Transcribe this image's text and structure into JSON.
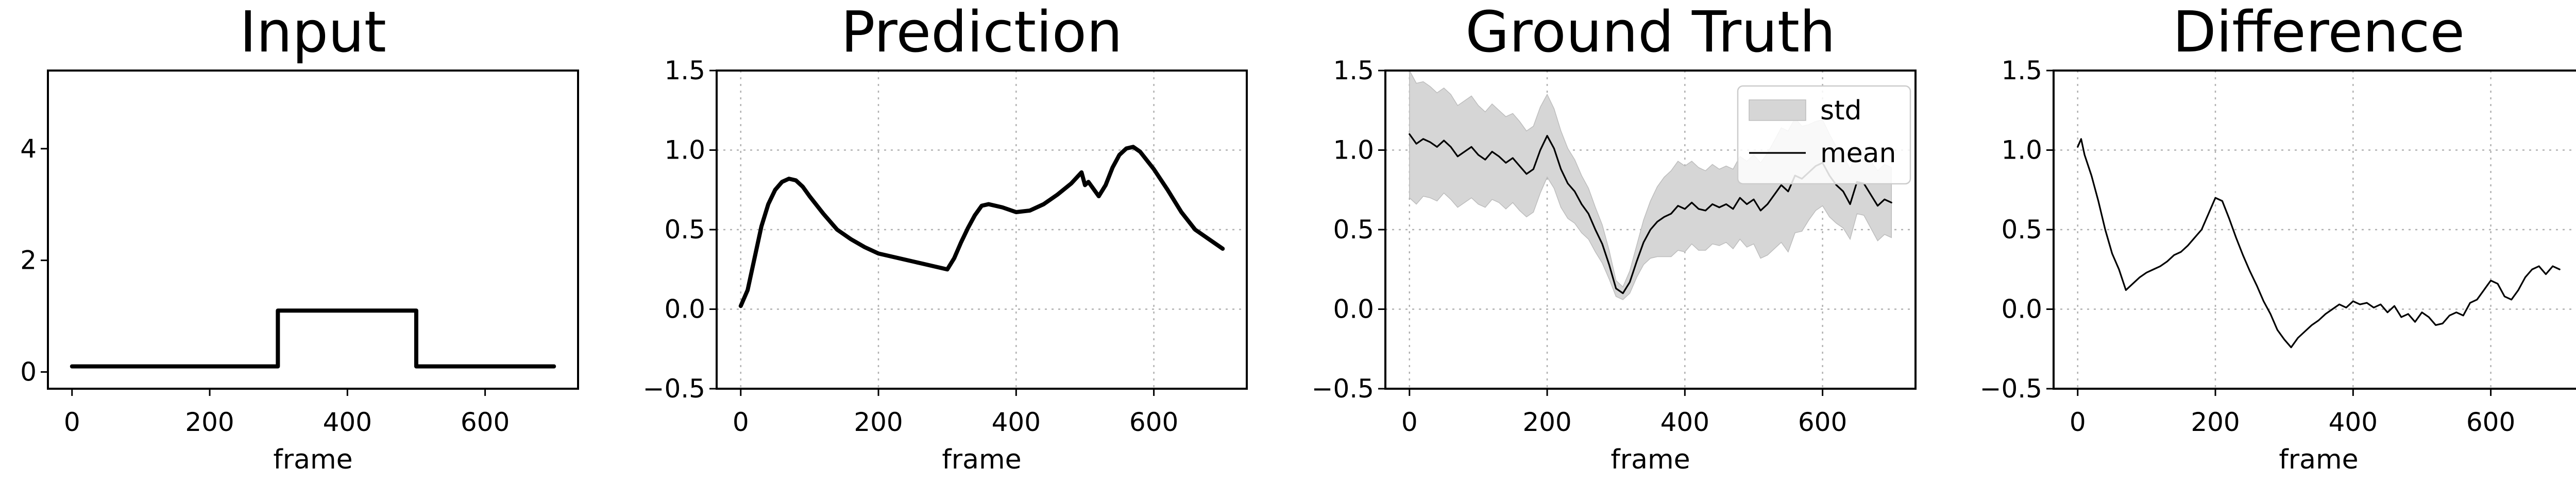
{
  "chart_data": [
    {
      "id": "input",
      "type": "line",
      "title": "Input",
      "xlabel": "frame",
      "ylabel": "",
      "xlim": [
        -35,
        735
      ],
      "ylim": [
        -0.3,
        5.4
      ],
      "xticks": [
        0,
        200,
        400,
        600
      ],
      "yticks": [
        0,
        2,
        4
      ],
      "grid": false,
      "series": [
        {
          "style": "thick",
          "color": "#000000",
          "x": [
            0,
            299,
            299,
            301,
            500,
            500,
            700
          ],
          "y": [
            0.1,
            0.1,
            1.1,
            1.1,
            1.1,
            0.1,
            0.1
          ]
        }
      ]
    },
    {
      "id": "prediction",
      "type": "line",
      "title": "Prediction",
      "xlabel": "frame",
      "ylabel": "",
      "xlim": [
        -35,
        735
      ],
      "ylim": [
        -0.5,
        1.5
      ],
      "xticks": [
        0,
        200,
        400,
        600
      ],
      "yticks": [
        -0.5,
        0.0,
        0.5,
        1.0,
        1.5
      ],
      "grid": true,
      "series": [
        {
          "style": "thick",
          "color": "#000000",
          "x": [
            0,
            10,
            20,
            30,
            40,
            50,
            60,
            70,
            80,
            90,
            100,
            120,
            140,
            160,
            180,
            200,
            230,
            260,
            300,
            310,
            320,
            330,
            340,
            350,
            360,
            380,
            400,
            420,
            440,
            460,
            480,
            495,
            500,
            505,
            510,
            520,
            530,
            540,
            550,
            560,
            570,
            580,
            600,
            620,
            640,
            660,
            680,
            700
          ],
          "y": [
            0.02,
            0.12,
            0.32,
            0.52,
            0.66,
            0.75,
            0.8,
            0.82,
            0.81,
            0.77,
            0.71,
            0.6,
            0.5,
            0.44,
            0.39,
            0.35,
            0.32,
            0.29,
            0.25,
            0.32,
            0.42,
            0.51,
            0.59,
            0.65,
            0.66,
            0.64,
            0.61,
            0.62,
            0.66,
            0.72,
            0.79,
            0.86,
            0.78,
            0.8,
            0.77,
            0.71,
            0.78,
            0.89,
            0.97,
            1.01,
            1.02,
            0.99,
            0.88,
            0.75,
            0.61,
            0.5,
            0.44,
            0.38
          ]
        }
      ]
    },
    {
      "id": "ground-truth",
      "type": "area",
      "title": "Ground Truth",
      "xlabel": "frame",
      "ylabel": "",
      "xlim": [
        -35,
        735
      ],
      "ylim": [
        -0.5,
        1.5
      ],
      "xticks": [
        0,
        200,
        400,
        600
      ],
      "yticks": [
        -0.5,
        0.0,
        0.5,
        1.0,
        1.5
      ],
      "grid": true,
      "legend_position": "top-right",
      "legend": [
        {
          "label": "std",
          "kind": "area",
          "color": "#d6d6d6"
        },
        {
          "label": "mean",
          "kind": "line",
          "color": "#000000"
        }
      ],
      "series": [
        {
          "name": "mean",
          "style": "thin",
          "color": "#000000",
          "x": [
            0,
            10,
            20,
            30,
            40,
            50,
            60,
            70,
            80,
            90,
            100,
            110,
            120,
            130,
            140,
            150,
            160,
            170,
            180,
            190,
            200,
            210,
            220,
            230,
            240,
            250,
            260,
            270,
            280,
            290,
            300,
            310,
            320,
            330,
            340,
            350,
            360,
            370,
            380,
            390,
            400,
            410,
            420,
            430,
            440,
            450,
            460,
            470,
            480,
            490,
            500,
            510,
            520,
            530,
            540,
            550,
            560,
            570,
            580,
            590,
            600,
            610,
            620,
            630,
            640,
            650,
            660,
            670,
            680,
            690,
            700
          ],
          "y": [
            1.1,
            1.04,
            1.07,
            1.05,
            1.02,
            1.06,
            1.02,
            0.96,
            0.99,
            1.02,
            0.97,
            0.94,
            0.99,
            0.96,
            0.92,
            0.95,
            0.9,
            0.85,
            0.88,
            1.0,
            1.09,
            1.01,
            0.88,
            0.79,
            0.74,
            0.66,
            0.6,
            0.5,
            0.41,
            0.28,
            0.13,
            0.1,
            0.17,
            0.3,
            0.42,
            0.5,
            0.55,
            0.58,
            0.6,
            0.65,
            0.63,
            0.67,
            0.63,
            0.62,
            0.66,
            0.64,
            0.66,
            0.63,
            0.7,
            0.66,
            0.69,
            0.62,
            0.66,
            0.72,
            0.78,
            0.74,
            0.84,
            0.82,
            0.86,
            0.9,
            0.92,
            0.84,
            0.78,
            0.74,
            0.66,
            0.8,
            0.79,
            0.72,
            0.65,
            0.69,
            0.67
          ],
          "std": [
            0.4,
            0.38,
            0.36,
            0.35,
            0.34,
            0.33,
            0.33,
            0.32,
            0.32,
            0.32,
            0.31,
            0.3,
            0.3,
            0.29,
            0.29,
            0.28,
            0.28,
            0.27,
            0.27,
            0.27,
            0.26,
            0.25,
            0.24,
            0.22,
            0.2,
            0.18,
            0.16,
            0.14,
            0.12,
            0.09,
            0.05,
            0.04,
            0.07,
            0.1,
            0.14,
            0.18,
            0.22,
            0.25,
            0.27,
            0.28,
            0.27,
            0.26,
            0.26,
            0.25,
            0.25,
            0.24,
            0.24,
            0.25,
            0.26,
            0.27,
            0.28,
            0.3,
            0.32,
            0.34,
            0.36,
            0.38,
            0.36,
            0.33,
            0.3,
            0.28,
            0.27,
            0.26,
            0.24,
            0.23,
            0.22,
            0.2,
            0.2,
            0.21,
            0.22,
            0.22,
            0.22
          ]
        }
      ]
    },
    {
      "id": "difference",
      "type": "line",
      "title": "Difference",
      "xlabel": "frame",
      "ylabel": "",
      "xlim": [
        -35,
        735
      ],
      "ylim": [
        -0.5,
        1.5
      ],
      "xticks": [
        0,
        200,
        400,
        600
      ],
      "yticks": [
        -0.5,
        0.0,
        0.5,
        1.0,
        1.5
      ],
      "grid": true,
      "series": [
        {
          "style": "thin",
          "color": "#000000",
          "x": [
            0,
            5,
            10,
            20,
            30,
            40,
            50,
            60,
            70,
            80,
            90,
            100,
            110,
            120,
            130,
            140,
            150,
            160,
            170,
            180,
            190,
            200,
            210,
            220,
            230,
            240,
            250,
            260,
            270,
            280,
            290,
            300,
            310,
            320,
            330,
            340,
            350,
            360,
            370,
            380,
            390,
            400,
            410,
            420,
            430,
            440,
            450,
            460,
            470,
            480,
            490,
            500,
            510,
            520,
            530,
            540,
            550,
            560,
            570,
            580,
            590,
            600,
            610,
            620,
            630,
            640,
            650,
            660,
            670,
            680,
            690,
            700
          ],
          "y": [
            1.02,
            1.07,
            0.97,
            0.84,
            0.68,
            0.5,
            0.35,
            0.25,
            0.12,
            0.16,
            0.2,
            0.23,
            0.25,
            0.27,
            0.3,
            0.34,
            0.36,
            0.4,
            0.45,
            0.5,
            0.6,
            0.7,
            0.68,
            0.57,
            0.45,
            0.34,
            0.24,
            0.15,
            0.05,
            -0.03,
            -0.13,
            -0.19,
            -0.24,
            -0.18,
            -0.14,
            -0.1,
            -0.07,
            -0.03,
            0.0,
            0.03,
            0.01,
            0.05,
            0.03,
            0.04,
            0.01,
            0.03,
            -0.02,
            0.02,
            -0.05,
            -0.03,
            -0.08,
            -0.02,
            -0.05,
            -0.1,
            -0.09,
            -0.04,
            -0.02,
            -0.04,
            0.04,
            0.06,
            0.12,
            0.18,
            0.16,
            0.08,
            0.06,
            0.12,
            0.2,
            0.25,
            0.27,
            0.22,
            0.27,
            0.25
          ]
        }
      ]
    }
  ]
}
